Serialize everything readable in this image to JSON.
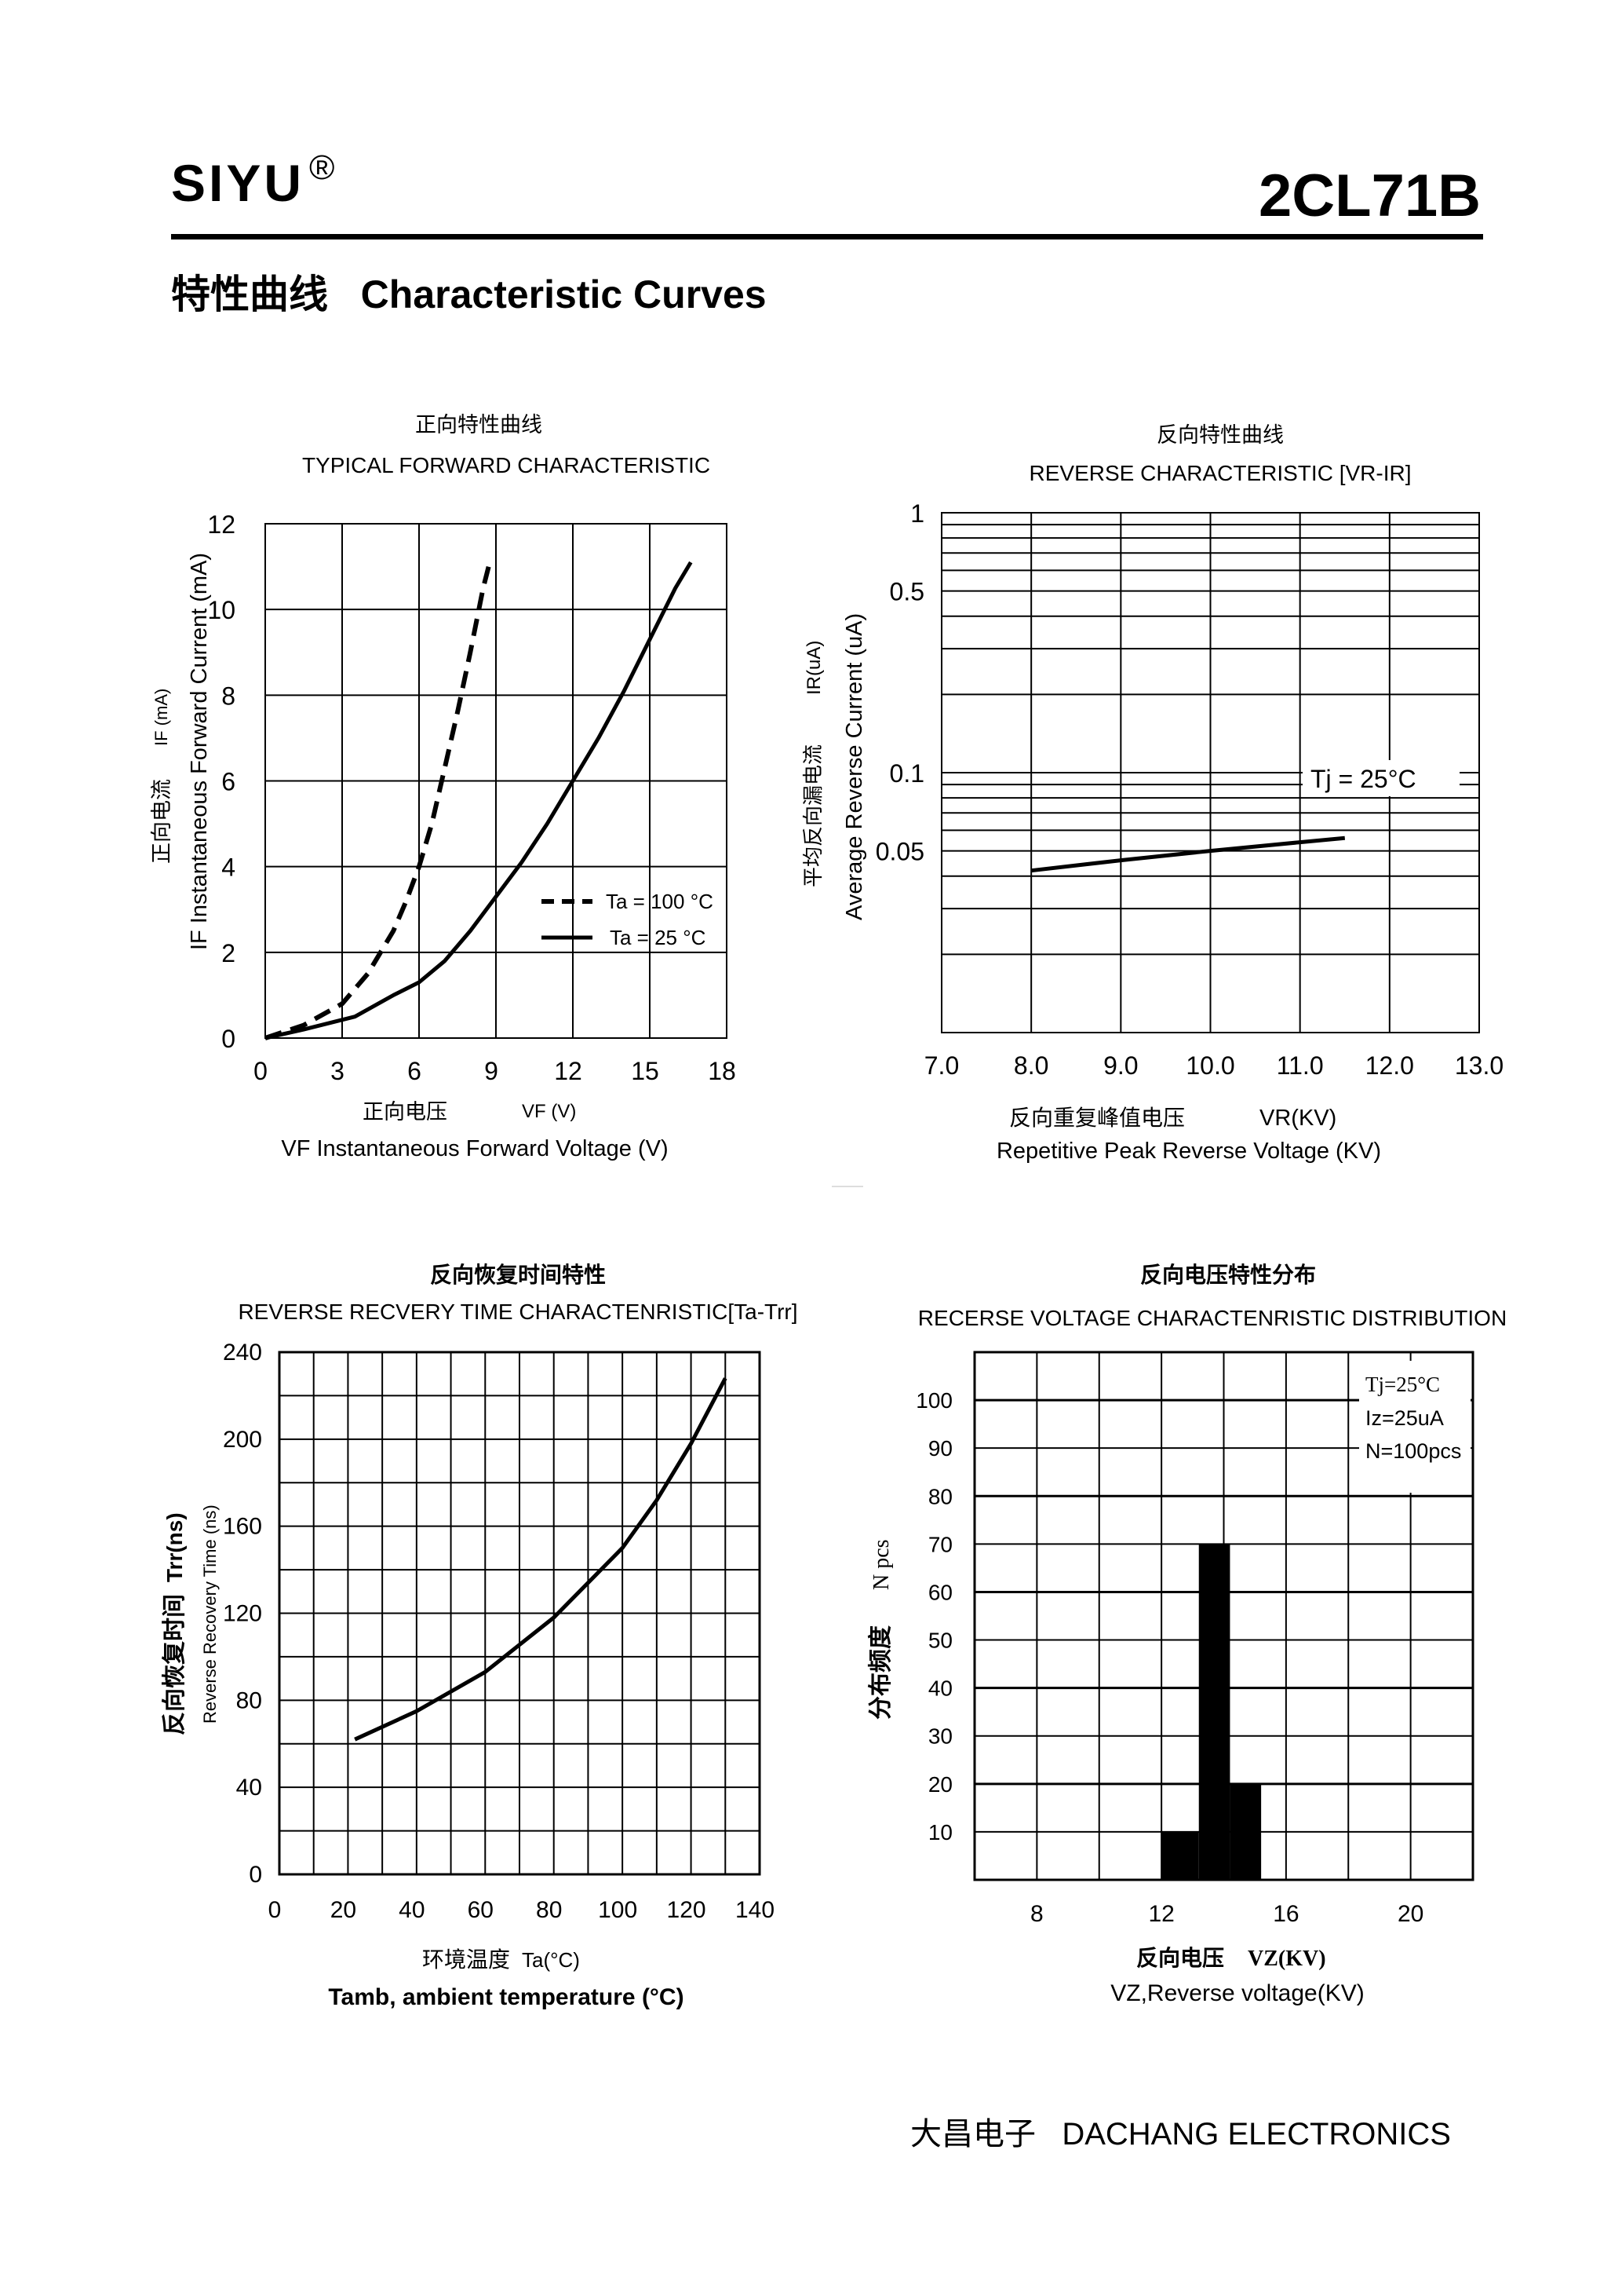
{
  "header": {
    "brand": "SIYU",
    "reg_mark": "®",
    "part_number": "2CL71B"
  },
  "section_title": "特性曲线   Characteristic Curves",
  "footer": "大昌电子   DACHANG ELECTRONICS",
  "chart_data": [
    {
      "type": "line",
      "title_cn": "正向特性曲线",
      "title": "TYPICAL FORWARD CHARACTERISTIC",
      "xlabel_cn": "正向电压",
      "xlabel_sym": "VF (V)",
      "xlabel": "VF  Instantaneous Forward Voltage (V)",
      "ylabel_cn": "正向电流",
      "ylabel_sym": "IF (mA)",
      "ylabel": "IF Instantaneous Forward Current (mA)",
      "xlim": [
        0,
        18
      ],
      "ylim": [
        0,
        12
      ],
      "xticks": [
        "0",
        "3",
        "6",
        "9",
        "12",
        "15",
        "18"
      ],
      "yticks": [
        "0",
        "2",
        "4",
        "6",
        "8",
        "10",
        "12"
      ],
      "grid": true,
      "legend_position": "lower-right",
      "series": [
        {
          "name": "Ta = 100 °C",
          "style": "dashed",
          "x": [
            0,
            1.5,
            3,
            4,
            5,
            5.5,
            6,
            6.5,
            7,
            7.5,
            8,
            8.5,
            8.8
          ],
          "y": [
            0,
            0.3,
            0.8,
            1.5,
            2.5,
            3.2,
            4.0,
            5.0,
            6.3,
            7.6,
            9.0,
            10.5,
            11.2
          ]
        },
        {
          "name": "Ta = 25 °C",
          "style": "solid",
          "x": [
            0,
            1.5,
            3.5,
            5,
            6,
            7,
            8,
            9,
            10,
            11,
            12,
            13,
            14,
            15,
            16,
            16.6
          ],
          "y": [
            0,
            0.2,
            0.5,
            1.0,
            1.3,
            1.8,
            2.5,
            3.3,
            4.1,
            5.0,
            6.0,
            7.0,
            8.1,
            9.3,
            10.5,
            11.1
          ]
        }
      ]
    },
    {
      "type": "line",
      "title_cn": "反向特性曲线",
      "title": "REVERSE CHARACTERISTIC [VR-IR]",
      "xlabel_cn": "反向重复峰值电压",
      "xlabel_sym": "VR(KV)",
      "xlabel": "Repetitive Peak Reverse Voltage (KV)",
      "ylabel_cn": "平均反向漏电流",
      "ylabel_sym": "IR(uA)",
      "ylabel": "Average Reverse  Current  (uA)",
      "annotation": "Tj = 25°C",
      "xticks": [
        "7.0",
        "8.0",
        "9.0",
        "10.0",
        "11.0",
        "12.0",
        "13.0"
      ],
      "yticks": [
        "1",
        "0.5",
        "0.1",
        "0.05"
      ],
      "xlim": [
        7.0,
        13.0
      ],
      "ylim": [
        0.01,
        1
      ],
      "yscale": "log",
      "grid": true,
      "series": [
        {
          "x": [
            8.0,
            9.0,
            10.0,
            11.0,
            11.5
          ],
          "y": [
            0.042,
            0.046,
            0.05,
            0.054,
            0.056
          ]
        }
      ]
    },
    {
      "type": "line",
      "title_cn": "反向恢复时间特性",
      "title": "REVERSE RECVERY TIME CHARACTENRISTIC[Ta-Trr]",
      "xlabel_cn": "环境温度",
      "xlabel_sym": "Ta(°C)",
      "xlabel": "Tamb, ambient temperature (°C)",
      "ylabel_cn": "反向恢复时间",
      "ylabel_sym": "Trr(ns)",
      "ylabel": "Reverse Recovery Time (ns)",
      "xticks": [
        "0",
        "20",
        "40",
        "60",
        "80",
        "100",
        "120",
        "140"
      ],
      "yticks": [
        "0",
        "40",
        "80",
        "120",
        "160",
        "200",
        "240"
      ],
      "xlim": [
        0,
        140
      ],
      "ylim": [
        0,
        240
      ],
      "grid": true,
      "series": [
        {
          "x": [
            22,
            40,
            60,
            80,
            100,
            110,
            120,
            130
          ],
          "y": [
            62,
            75,
            93,
            118,
            150,
            172,
            198,
            228
          ]
        }
      ]
    },
    {
      "type": "bar",
      "title_cn": "反向电压特性分布",
      "title": "RECERSE VOLTAGE CHARACTENRISTIC DISTRIBUTION",
      "xlabel_cn": "反向电压",
      "xlabel_sym": "VZ(KV)",
      "xlabel": "VZ,Reverse voltage(KV)",
      "ylabel_cn": "分布频度",
      "ylabel_sym": "N pcs",
      "annotation": [
        "Tj=25°C",
        "Iz=25uA",
        "N=100pcs"
      ],
      "xticks": [
        "8",
        "12",
        "16",
        "20"
      ],
      "yticks": [
        "10",
        "20",
        "30",
        "40",
        "50",
        "60",
        "70",
        "80",
        "90",
        "100"
      ],
      "xlim": [
        6,
        22
      ],
      "ylim": [
        0,
        110
      ],
      "grid": true,
      "bars": [
        {
          "x0": 12.0,
          "x1": 13.2,
          "value": 10
        },
        {
          "x0": 13.2,
          "x1": 14.2,
          "value": 70
        },
        {
          "x0": 14.2,
          "x1": 15.2,
          "value": 20
        }
      ]
    }
  ]
}
